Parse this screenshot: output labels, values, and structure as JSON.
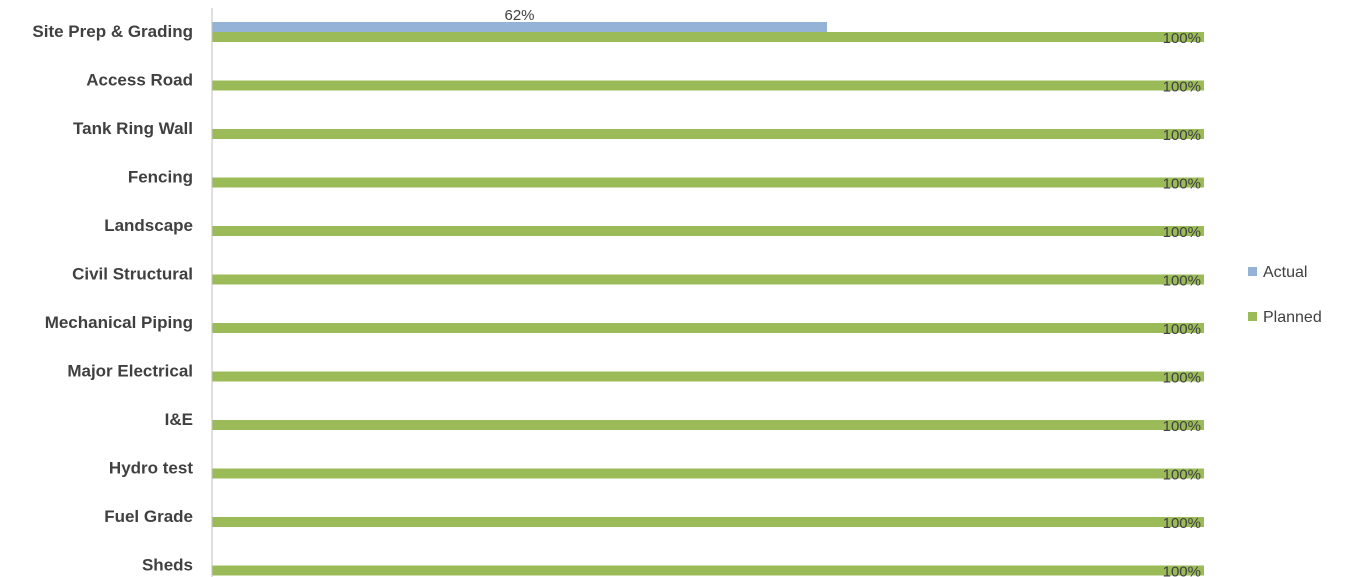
{
  "chart_data": {
    "type": "bar",
    "orientation": "horizontal",
    "title": "",
    "xlabel": "",
    "ylabel": "",
    "xlim": [
      0,
      1
    ],
    "grid": false,
    "legend_position": "right",
    "categories": [
      "Site Prep & Grading",
      "Access Road",
      "Tank Ring Wall",
      "Fencing",
      "Landscape",
      "Civil Structural",
      "Mechanical Piping",
      "Major Electrical",
      "I&E",
      "Hydro test",
      "Fuel Grade",
      "Sheds"
    ],
    "series": [
      {
        "name": "Actual",
        "color": "#95b3d7",
        "values": [
          0.62,
          0,
          0,
          0,
          0,
          0,
          0,
          0,
          0,
          0,
          0,
          0
        ],
        "labels": [
          "62%",
          "",
          "",
          "",
          "",
          "",
          "",
          "",
          "",
          "",
          "",
          ""
        ]
      },
      {
        "name": "Planned",
        "color": "#9bbb59",
        "values": [
          1,
          1,
          1,
          1,
          1,
          1,
          1,
          1,
          1,
          1,
          1,
          1
        ],
        "labels": [
          "100%",
          "100%",
          "100%",
          "100%",
          "100%",
          "100%",
          "100%",
          "100%",
          "100%",
          "100%",
          "100%",
          "100%"
        ]
      }
    ],
    "axis_color": "#bfbfbf"
  }
}
